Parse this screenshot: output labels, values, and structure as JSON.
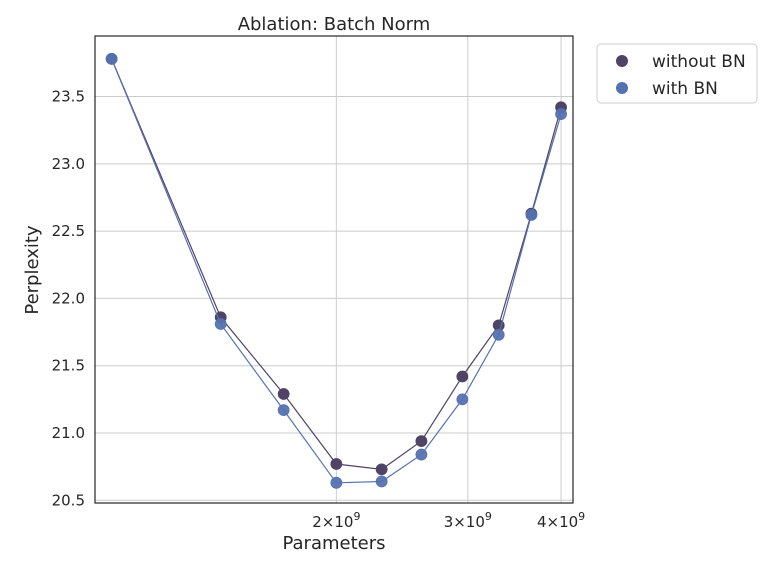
{
  "chart_data": {
    "type": "line",
    "title": "Ablation: Batch Norm",
    "xlabel": "Parameters",
    "ylabel": "Perplexity",
    "x_scale": "log",
    "x_ticks": [
      {
        "value": 2000000000,
        "base": "2",
        "exp": "9"
      },
      {
        "value": 3000000000,
        "base": "3",
        "exp": "9"
      },
      {
        "value": 4000000000,
        "base": "4",
        "exp": "9"
      }
    ],
    "y_ticks": [
      20.5,
      21.0,
      21.5,
      22.0,
      22.5,
      23.0,
      23.5
    ],
    "y_tick_labels": [
      "20.5",
      "21.0",
      "21.5",
      "22.0",
      "22.5",
      "23.0",
      "23.5"
    ],
    "xlim": [
      950000000,
      4150000000
    ],
    "ylim": [
      20.48,
      23.95
    ],
    "grid": true,
    "legend_position": "outside-top-right",
    "series": [
      {
        "name": "without BN",
        "color": "#4f4466",
        "x": [
          1000000000,
          1400000000,
          1700000000,
          2000000000,
          2300000000,
          2600000000,
          2950000000,
          3300000000,
          3650000000,
          4000000000
        ],
        "y": [
          23.78,
          21.86,
          21.29,
          20.77,
          20.73,
          20.94,
          21.42,
          21.8,
          22.63,
          23.42
        ]
      },
      {
        "name": "with BN",
        "color": "#5572b0",
        "x": [
          1000000000,
          1400000000,
          1700000000,
          2000000000,
          2300000000,
          2600000000,
          2950000000,
          3300000000,
          3650000000,
          4000000000
        ],
        "y": [
          23.78,
          21.81,
          21.17,
          20.63,
          20.64,
          20.84,
          21.25,
          21.73,
          22.62,
          23.37
        ]
      }
    ]
  }
}
